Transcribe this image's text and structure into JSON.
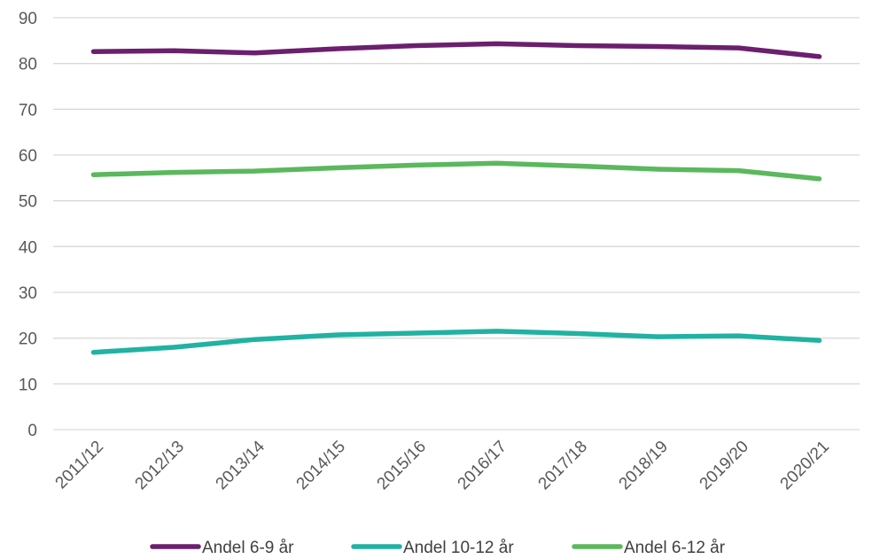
{
  "chart_data": {
    "type": "line",
    "title": "",
    "xlabel": "",
    "ylabel": "",
    "ylim": [
      0,
      90
    ],
    "yticks": [
      0,
      10,
      20,
      30,
      40,
      50,
      60,
      70,
      80,
      90
    ],
    "grid": "horizontal",
    "legend_position": "bottom",
    "categories": [
      "2011/12",
      "2012/13",
      "2013/14",
      "2014/15",
      "2015/16",
      "2016/17",
      "2017/18",
      "2018/19",
      "2019/20",
      "2020/21"
    ],
    "series": [
      {
        "name": "Andel 6-9 år",
        "color": "#6b1f6e",
        "values": [
          82.6,
          82.8,
          82.3,
          83.2,
          83.9,
          84.3,
          83.9,
          83.7,
          83.4,
          81.5
        ]
      },
      {
        "name": "Andel 10-12 år",
        "color": "#20b2a2",
        "values": [
          16.9,
          18.0,
          19.7,
          20.7,
          21.1,
          21.5,
          21.0,
          20.3,
          20.5,
          19.5
        ]
      },
      {
        "name": "Andel 6-12 år",
        "color": "#5bb85d",
        "values": [
          55.7,
          56.2,
          56.5,
          57.2,
          57.8,
          58.2,
          57.6,
          56.9,
          56.6,
          54.8
        ]
      }
    ]
  }
}
